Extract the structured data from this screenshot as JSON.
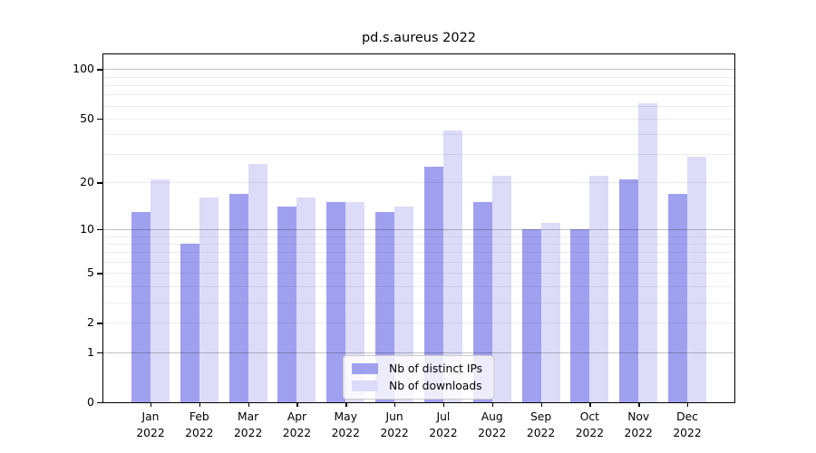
{
  "title": "pd.s.aureus 2022",
  "chart_data": {
    "type": "bar",
    "title": "pd.s.aureus 2022",
    "yscale": "log(value+1)",
    "ylim": [
      0,
      123
    ],
    "grid": true,
    "categories": [
      "Jan",
      "Feb",
      "Mar",
      "Apr",
      "May",
      "Jun",
      "Jul",
      "Aug",
      "Sep",
      "Oct",
      "Nov",
      "Dec"
    ],
    "x_label_line2": "2022",
    "series": [
      {
        "name": "Nb of distinct IPs",
        "color": "#a0a0f0",
        "values": [
          13,
          8,
          17,
          14,
          15,
          13,
          25,
          15,
          10,
          10,
          21,
          17
        ]
      },
      {
        "name": "Nb of downloads",
        "color": "#dcdcf8",
        "values": [
          21,
          16,
          26,
          16,
          15,
          14,
          42,
          22,
          11,
          22,
          62,
          29
        ]
      }
    ],
    "yticks": [
      100,
      50,
      20,
      10,
      5,
      2,
      1,
      0
    ],
    "major_gridlines": [
      1,
      10,
      100
    ],
    "minor_gridlines": [
      2,
      3,
      4,
      5,
      6,
      7,
      8,
      9,
      20,
      30,
      40,
      50,
      60,
      70,
      80,
      90
    ],
    "legend": {
      "position": "lower center"
    }
  },
  "colors": {
    "distinct_ips_bar": "#a0a0f0",
    "downloads_bar": "#dcdcf8",
    "grid_major": "#c2c2c2",
    "grid_minor": "#ededed",
    "axis": "#000000"
  }
}
